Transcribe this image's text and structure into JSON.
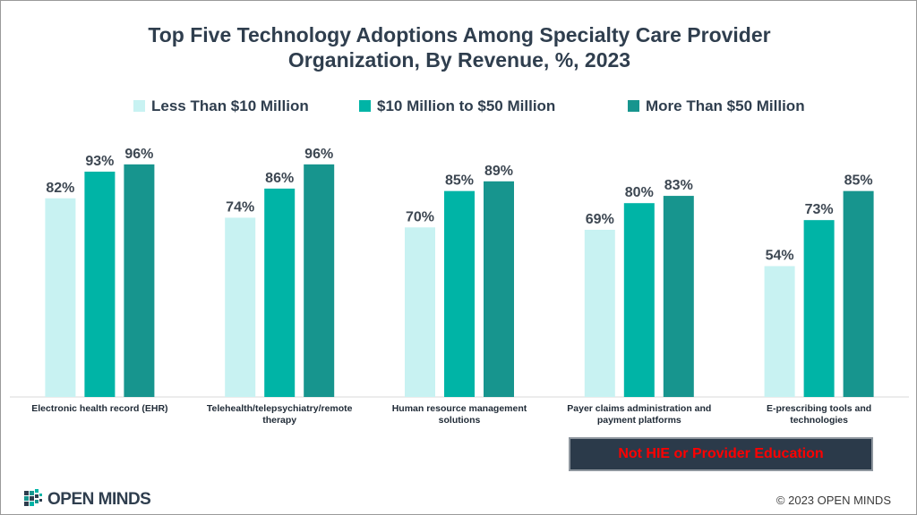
{
  "title_line1": "Top Five Technology Adoptions Among Specialty Care Provider",
  "title_line2": "Organization, By Revenue, %, 2023",
  "chart_data": {
    "type": "bar",
    "title": "Top Five Technology Adoptions Among Specialty Care Provider Organization, By Revenue, %, 2023",
    "categories": [
      [
        "Electronic health record (EHR)"
      ],
      [
        "Telehealth/telepsychiatry/remote",
        "therapy"
      ],
      [
        "Human resource management",
        "solutions"
      ],
      [
        "Payer claims administration and",
        "payment platforms"
      ],
      [
        "E-prescribing tools and",
        "technologies"
      ]
    ],
    "series": [
      {
        "name": "Less Than $10 Million",
        "color": "#c8f2f2",
        "values": [
          82,
          74,
          70,
          69,
          54
        ]
      },
      {
        "name": "$10 Million to $50 Million",
        "color": "#00b4a6",
        "values": [
          93,
          86,
          85,
          80,
          73
        ]
      },
      {
        "name": "More Than $50 Million",
        "color": "#17958e",
        "values": [
          96,
          96,
          89,
          83,
          85
        ]
      }
    ],
    "value_suffix": "%",
    "ylim": [
      0,
      100
    ],
    "legend_position": "top",
    "grid": false
  },
  "note": "Not HIE or Provider Education",
  "logo_text": "OPEN MINDS",
  "copyright": "© 2023 OPEN MINDS"
}
